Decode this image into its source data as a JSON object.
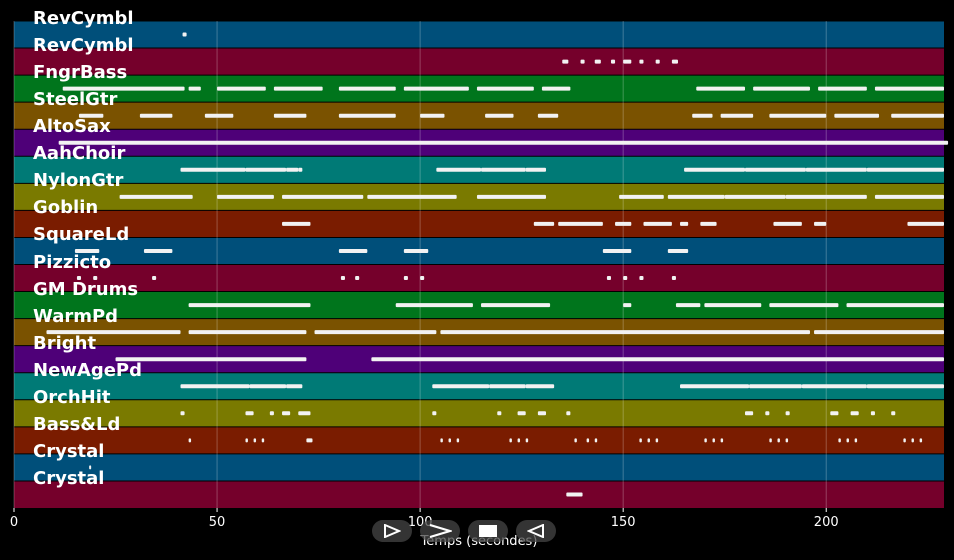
{
  "plot": {
    "xlabel": "Temps (secondes)",
    "xlim": [
      0,
      229
    ],
    "xticks": [
      0,
      50,
      100,
      150,
      200
    ]
  },
  "tracks": [
    {
      "name": "RevCymbl",
      "color": "#004f7a",
      "notes": [
        [
          41.5,
          42.5
        ]
      ]
    },
    {
      "name": "RevCymbl",
      "color": "#75002b",
      "notes": [
        [
          135,
          136.5
        ],
        [
          139.5,
          140.5
        ],
        [
          143,
          144.5
        ],
        [
          147,
          148
        ],
        [
          150,
          152
        ],
        [
          154,
          155
        ],
        [
          158,
          159
        ],
        [
          162,
          163.5
        ]
      ]
    },
    {
      "name": "FngrBass",
      "color": "#00751c",
      "notes": [
        [
          12,
          42
        ],
        [
          43,
          46
        ],
        [
          50,
          62
        ],
        [
          64,
          76
        ],
        [
          80,
          94
        ],
        [
          96,
          112
        ],
        [
          114,
          128
        ],
        [
          130,
          137
        ],
        [
          168,
          180
        ],
        [
          182,
          196
        ],
        [
          198,
          210
        ],
        [
          212,
          229
        ]
      ]
    },
    {
      "name": "SteelGtr",
      "color": "#7a5200",
      "notes": [
        [
          16,
          22
        ],
        [
          31,
          39
        ],
        [
          47,
          54
        ],
        [
          64,
          72
        ],
        [
          80,
          94
        ],
        [
          100,
          106
        ],
        [
          116,
          123
        ],
        [
          129,
          134
        ],
        [
          167,
          172
        ],
        [
          174,
          182
        ],
        [
          186,
          200
        ],
        [
          202,
          213
        ],
        [
          216,
          229
        ]
      ]
    },
    {
      "name": "AltoSax",
      "color": "#4e0078",
      "notes": [
        [
          11,
          230
        ]
      ]
    },
    {
      "name": "AahChoir",
      "color": "#007a76",
      "notes": [
        [
          41,
          57
        ],
        [
          57,
          67
        ],
        [
          67,
          70
        ],
        [
          70,
          71
        ],
        [
          104,
          115
        ],
        [
          115,
          126
        ],
        [
          126,
          131
        ],
        [
          165,
          180
        ],
        [
          180,
          195
        ],
        [
          195,
          210
        ],
        [
          210,
          229
        ]
      ]
    },
    {
      "name": "NylonGtr",
      "color": "#7a7a00",
      "notes": [
        [
          26,
          44
        ],
        [
          50,
          64
        ],
        [
          66,
          86
        ],
        [
          87,
          109
        ],
        [
          114,
          131
        ],
        [
          149,
          160
        ],
        [
          161,
          175
        ],
        [
          175,
          190
        ],
        [
          190,
          210
        ],
        [
          212,
          229
        ]
      ]
    },
    {
      "name": "Goblin",
      "color": "#7a1c00",
      "notes": [
        [
          66,
          73
        ],
        [
          128,
          133
        ],
        [
          134,
          145
        ],
        [
          148,
          152
        ],
        [
          155,
          162
        ],
        [
          164,
          166
        ],
        [
          169,
          173
        ],
        [
          187,
          194
        ],
        [
          197,
          200
        ],
        [
          220,
          229
        ]
      ]
    },
    {
      "name": "SquareLd",
      "color": "#004f7a",
      "notes": [
        [
          15,
          21
        ],
        [
          32,
          39
        ],
        [
          80,
          87
        ],
        [
          96,
          102
        ],
        [
          145,
          152
        ],
        [
          161,
          166
        ]
      ]
    },
    {
      "name": "Pizzicto",
      "color": "#75002b",
      "notes": [
        [
          15.5,
          16.5
        ],
        [
          19.5,
          20.5
        ],
        [
          34,
          35
        ],
        [
          80.5,
          81.5
        ],
        [
          84,
          85
        ],
        [
          96,
          97
        ],
        [
          100,
          101
        ],
        [
          146,
          147
        ],
        [
          150,
          151
        ],
        [
          154,
          155
        ],
        [
          162,
          163
        ]
      ]
    },
    {
      "name": "GM Drums",
      "color": "#00751c",
      "notes": [
        [
          43,
          73
        ],
        [
          94,
          113
        ],
        [
          115,
          132
        ],
        [
          150,
          152
        ],
        [
          163,
          169
        ],
        [
          170,
          184
        ],
        [
          186,
          203
        ],
        [
          205,
          229
        ]
      ]
    },
    {
      "name": "WarmPd",
      "color": "#7a5200",
      "notes": [
        [
          8,
          41
        ],
        [
          43,
          72
        ],
        [
          74,
          104
        ],
        [
          105,
          196
        ],
        [
          197,
          229
        ]
      ]
    },
    {
      "name": "Bright",
      "color": "#4e0078",
      "notes": [
        [
          25,
          72
        ],
        [
          88,
          229
        ]
      ]
    },
    {
      "name": "NewAgePd",
      "color": "#007a76",
      "notes": [
        [
          41,
          58
        ],
        [
          58,
          67
        ],
        [
          67,
          71
        ],
        [
          103,
          117
        ],
        [
          117,
          126
        ],
        [
          126,
          133
        ],
        [
          164,
          181
        ],
        [
          181,
          194
        ],
        [
          194,
          210
        ],
        [
          210,
          229
        ]
      ]
    },
    {
      "name": "OrchHit",
      "color": "#7a7a00",
      "notes": [
        [
          41,
          42
        ],
        [
          57,
          59
        ],
        [
          63,
          64
        ],
        [
          66,
          68
        ],
        [
          70,
          73
        ],
        [
          103,
          104
        ],
        [
          119,
          120
        ],
        [
          124,
          126
        ],
        [
          129,
          131
        ],
        [
          136,
          137
        ],
        [
          180,
          182
        ],
        [
          185,
          186
        ],
        [
          190,
          191
        ],
        [
          201,
          203
        ],
        [
          206,
          208
        ],
        [
          211,
          212
        ],
        [
          216,
          217
        ]
      ]
    },
    {
      "name": "Bass&Ld",
      "color": "#7a1c00",
      "notes": [
        [
          43,
          43.6
        ],
        [
          57,
          57.6
        ],
        [
          59,
          59.6
        ],
        [
          61,
          61.6
        ],
        [
          72,
          73.5
        ],
        [
          105,
          105.6
        ],
        [
          107,
          107.6
        ],
        [
          109,
          109.6
        ],
        [
          122,
          122.6
        ],
        [
          124,
          124.6
        ],
        [
          126,
          126.6
        ],
        [
          138,
          138.6
        ],
        [
          141,
          141.6
        ],
        [
          143,
          143.6
        ],
        [
          154,
          154.6
        ],
        [
          156,
          156.6
        ],
        [
          158,
          158.6
        ],
        [
          170,
          170.6
        ],
        [
          172,
          172.6
        ],
        [
          174,
          174.6
        ],
        [
          186,
          186.6
        ],
        [
          188,
          188.6
        ],
        [
          190,
          190.6
        ],
        [
          203,
          203.6
        ],
        [
          205,
          205.6
        ],
        [
          207,
          207.6
        ],
        [
          219,
          219.6
        ],
        [
          221,
          221.6
        ],
        [
          223,
          223.6
        ]
      ]
    },
    {
      "name": "Crystal",
      "color": "#004f7a",
      "notes": [
        [
          18.5,
          19
        ]
      ]
    },
    {
      "name": "Crystal",
      "color": "#75002b",
      "notes": [
        [
          136,
          140
        ]
      ]
    }
  ],
  "controls": {
    "play_icon": "play-icon",
    "skip_icon": "next-icon",
    "stop_icon": "stop-icon",
    "reverse_icon": "reverse-icon"
  }
}
